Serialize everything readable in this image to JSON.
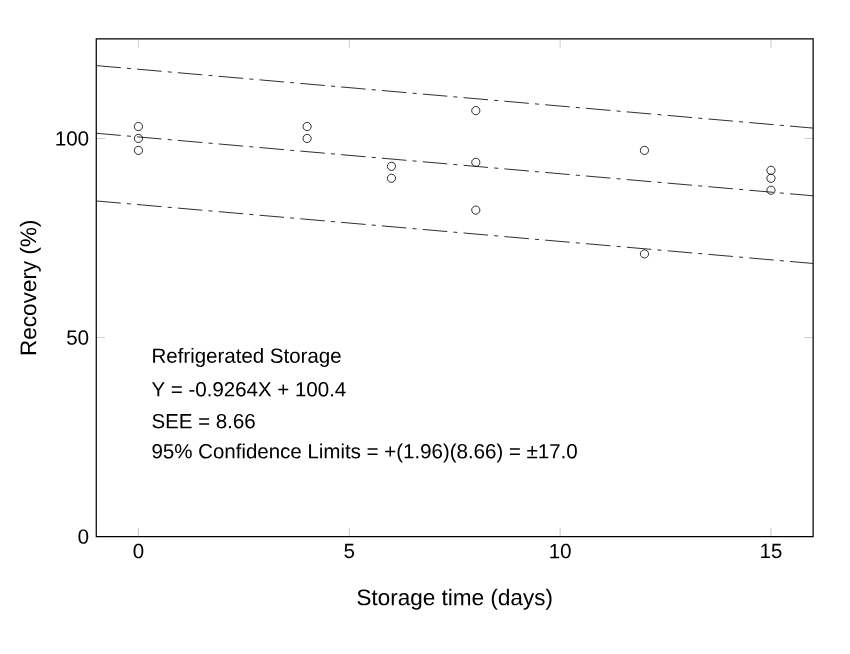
{
  "chart_data": {
    "type": "scatter",
    "xlabel": "Storage time (days)",
    "ylabel": "Recovery (%)",
    "xlim": [
      -1,
      16
    ],
    "ylim": [
      0,
      125
    ],
    "xticks": [
      0,
      5,
      10,
      15
    ],
    "yticks": [
      0,
      50,
      100
    ],
    "grid": false,
    "series": [
      {
        "color": "#000000",
        "marker": "circle",
        "x": [
          0,
          0,
          0,
          4,
          4,
          6,
          6,
          8,
          8,
          8,
          12,
          12,
          15,
          15,
          15
        ],
        "values": [
          103,
          100,
          97,
          103,
          100,
          93,
          90,
          107,
          94,
          82,
          97,
          71,
          92,
          90,
          87
        ]
      },
      {
        "type": "line",
        "color": "#000000",
        "line_style": "dashed",
        "x": [
          -1,
          16
        ],
        "values": [
          101.3,
          85.6
        ]
      },
      {
        "type": "line",
        "color": "#000000",
        "line_style": "dashed",
        "x": [
          -1,
          16
        ],
        "values": [
          118.3,
          102.6
        ]
      },
      {
        "type": "line",
        "color": "#000000",
        "line_style": "dashed",
        "x": [
          -1,
          16
        ],
        "values": [
          84.3,
          68.6
        ]
      }
    ],
    "annotations": [
      "Refrigerated Storage",
      "Y = -0.9264X + 100.4",
      "SEE = 8.66",
      "95% Confidence Limits = +(1.96)(8.66) = ±17.0"
    ]
  }
}
